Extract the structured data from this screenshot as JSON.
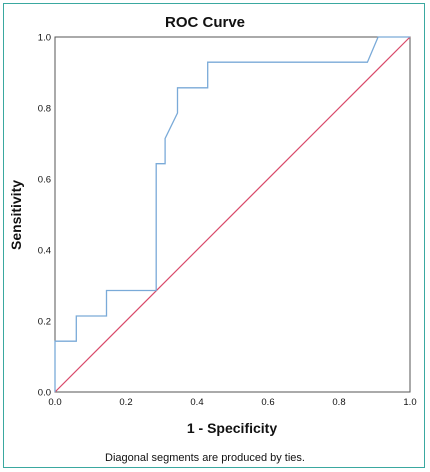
{
  "chart_data": {
    "type": "line",
    "title": "ROC Curve",
    "xlabel": "1 - Specificity",
    "ylabel": "Sensitivity",
    "xlim": [
      0,
      1
    ],
    "ylim": [
      0,
      1
    ],
    "x_ticks": [
      "0.0",
      "0.2",
      "0.4",
      "0.6",
      "0.8",
      "1.0"
    ],
    "y_ticks": [
      "0.0",
      "0.2",
      "0.4",
      "0.6",
      "0.8",
      "1.0"
    ],
    "grid": true,
    "series": [
      {
        "color": "#7aaad8",
        "x": [
          0.0,
          0.0,
          0.06,
          0.06,
          0.145,
          0.145,
          0.285,
          0.285,
          0.31,
          0.31,
          0.345,
          0.345,
          0.43,
          0.43,
          0.88,
          0.91,
          1.0
        ],
        "y": [
          0.0,
          0.143,
          0.143,
          0.214,
          0.214,
          0.286,
          0.286,
          0.643,
          0.643,
          0.714,
          0.786,
          0.857,
          0.857,
          0.929,
          0.929,
          1.0,
          1.0
        ]
      },
      {
        "color": "#d94a6a",
        "x": [
          0,
          1
        ],
        "y": [
          0,
          1
        ]
      }
    ],
    "footnote": "Diagonal segments are produced by ties."
  }
}
